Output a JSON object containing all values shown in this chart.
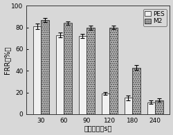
{
  "categories": [
    "30",
    "60",
    "90",
    "120",
    "180",
    "240"
  ],
  "pes_values": [
    81,
    73,
    72,
    19,
    15,
    11
  ],
  "m2_values": [
    87,
    84,
    80,
    80,
    43,
    13
  ],
  "pes_errors": [
    2.5,
    2.0,
    2.0,
    1.5,
    2.0,
    1.5
  ],
  "m2_errors": [
    2.0,
    1.5,
    2.0,
    1.5,
    2.0,
    1.5
  ],
  "ylabel": "FRR（%）",
  "xlabel": "加热时间（s）",
  "ylim": [
    0,
    100
  ],
  "bar_width": 0.35,
  "pes_color": "#f0f0f0",
  "m2_color": "#c8c8c8",
  "edge_color": "#333333",
  "bg_color": "#e8e8e8",
  "label_fontsize": 7,
  "tick_fontsize": 6.5,
  "legend_fontsize": 6.5
}
